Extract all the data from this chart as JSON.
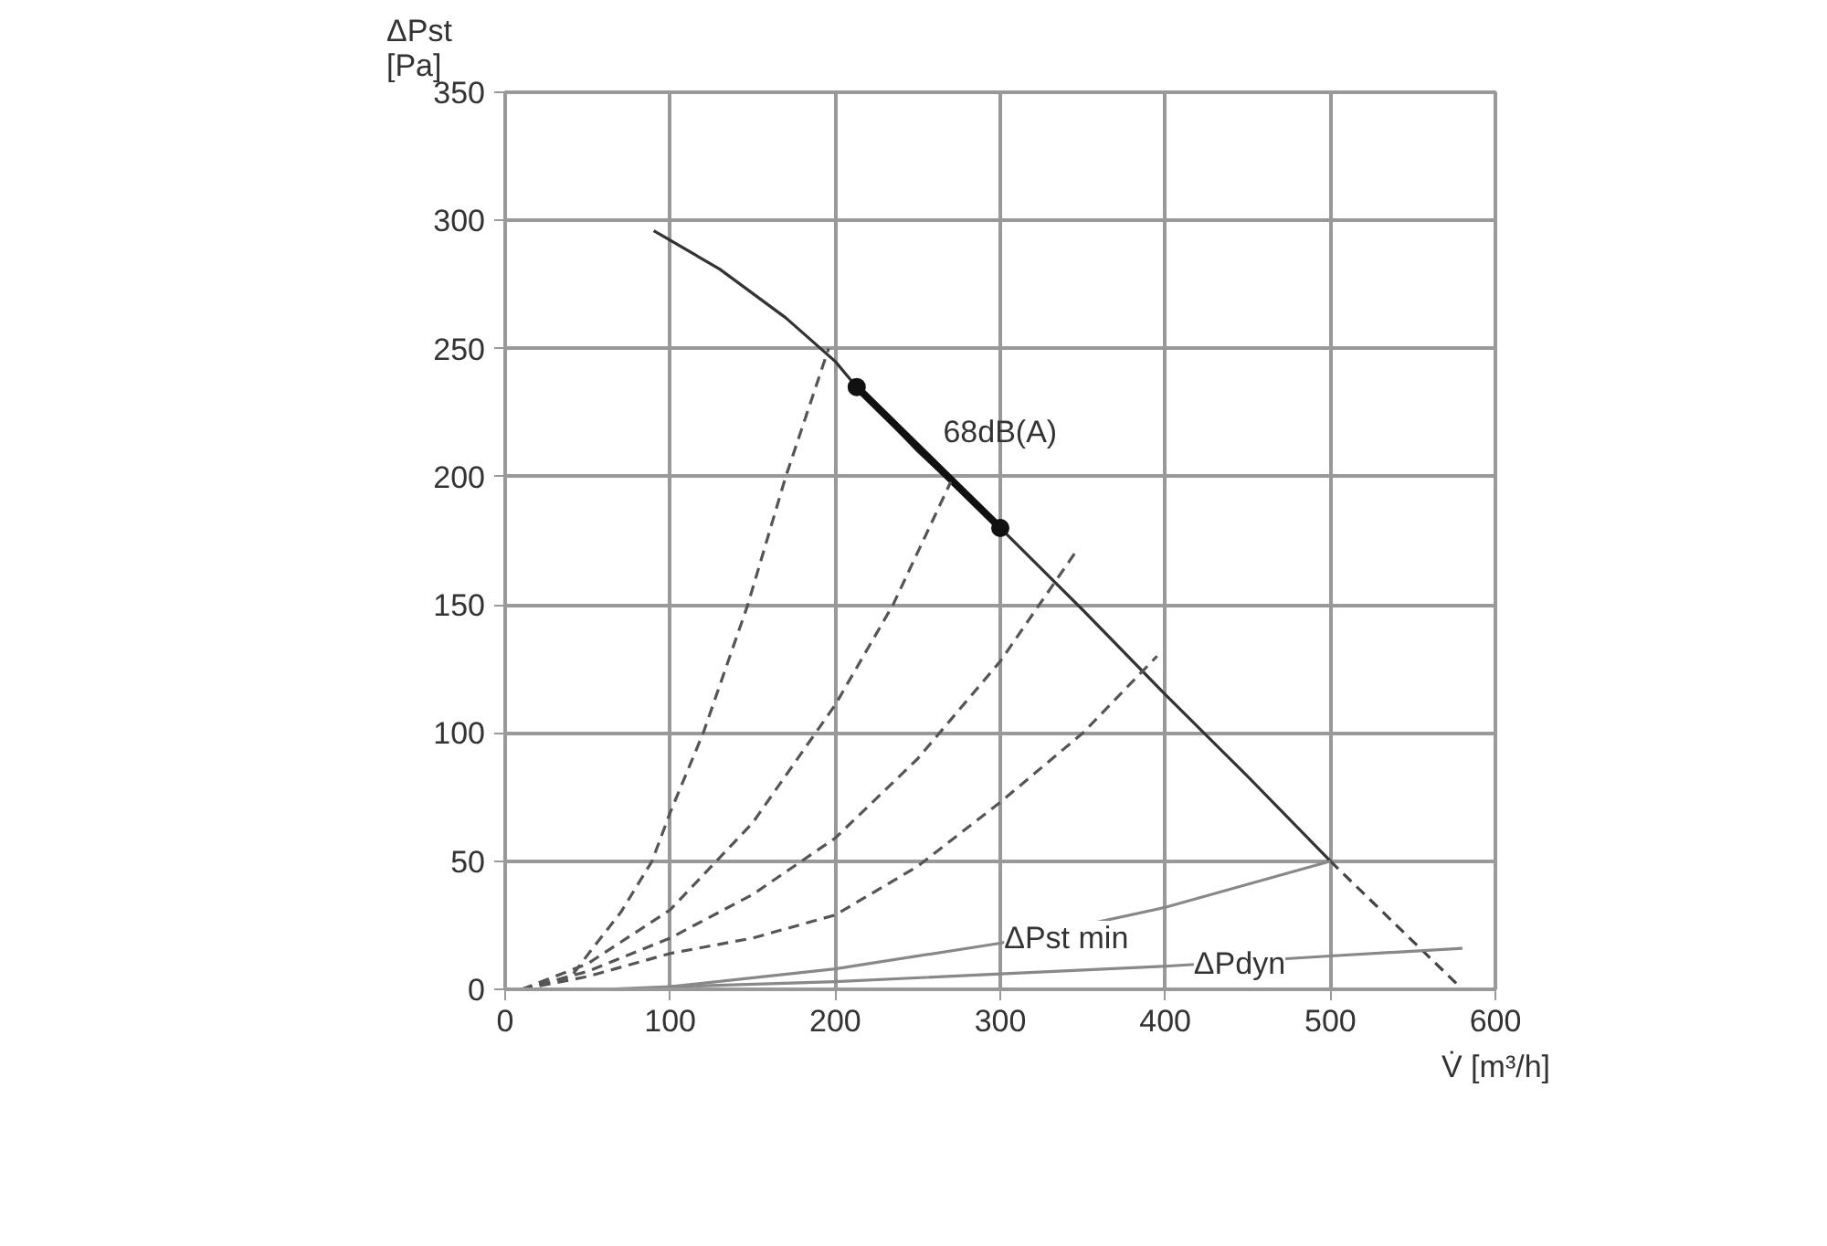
{
  "chart_data": {
    "type": "line",
    "xlabel": "V̇ [m³/h]",
    "ylabel": "ΔPst\n[Pa]",
    "xlim": [
      0,
      600
    ],
    "ylim": [
      0,
      350
    ],
    "xticks": [
      0,
      100,
      200,
      300,
      400,
      500,
      600
    ],
    "yticks": [
      0,
      50,
      100,
      150,
      200,
      250,
      300,
      350
    ],
    "grid": true,
    "series": [
      {
        "color": "#333333",
        "line_style": "solid",
        "x": [
          90,
          130,
          170,
          200,
          213,
          250,
          300,
          350,
          400,
          450,
          500
        ],
        "values": [
          296,
          281,
          262,
          245,
          235,
          210,
          180,
          148,
          115,
          83,
          50
        ]
      },
      {
        "color": "#111111",
        "line_style": "solid",
        "marker": "circle",
        "x": [
          213,
          300
        ],
        "values": [
          235,
          180
        ]
      },
      {
        "color": "#444444",
        "line_style": "dashed",
        "x": [
          500,
          540,
          580
        ],
        "values": [
          50,
          25,
          0
        ]
      },
      {
        "color": "#555555",
        "line_style": "dashed",
        "x": [
          10,
          40,
          53,
          70,
          89,
          100,
          120,
          147,
          170,
          196
        ],
        "values": [
          0,
          5,
          16,
          30,
          50,
          69,
          100,
          150,
          200,
          250
        ]
      },
      {
        "color": "#555555",
        "line_style": "dashed",
        "x": [
          10,
          50,
          100,
          150,
          200,
          235,
          270
        ],
        "values": [
          0,
          10,
          31,
          65,
          111,
          150,
          198
        ]
      },
      {
        "color": "#555555",
        "line_style": "dashed",
        "x": [
          10,
          50,
          100,
          150,
          200,
          250,
          300,
          345
        ],
        "values": [
          0,
          7,
          20,
          37,
          59,
          90,
          128,
          170
        ]
      },
      {
        "color": "#555555",
        "line_style": "dashed",
        "x": [
          10,
          50,
          100,
          150,
          200,
          250,
          300,
          350,
          395
        ],
        "values": [
          0,
          5,
          14,
          20,
          29,
          48,
          73,
          100,
          130
        ]
      },
      {
        "color": "#888888",
        "line_style": "solid",
        "x": [
          100,
          200,
          300,
          400,
          500
        ],
        "values": [
          1,
          8,
          18,
          32,
          50
        ]
      },
      {
        "color": "#888888",
        "line_style": "solid",
        "x": [
          60,
          100,
          200,
          300,
          400,
          500,
          580
        ],
        "values": [
          0,
          1,
          3,
          6,
          9,
          13,
          16
        ]
      }
    ],
    "annotations": [
      "68dB(A)",
      {
        "text": "ΔPst min",
        "x": 340,
        "y": 20
      },
      {
        "text": "ΔPdyn",
        "x": 445,
        "y": 10
      }
    ]
  }
}
